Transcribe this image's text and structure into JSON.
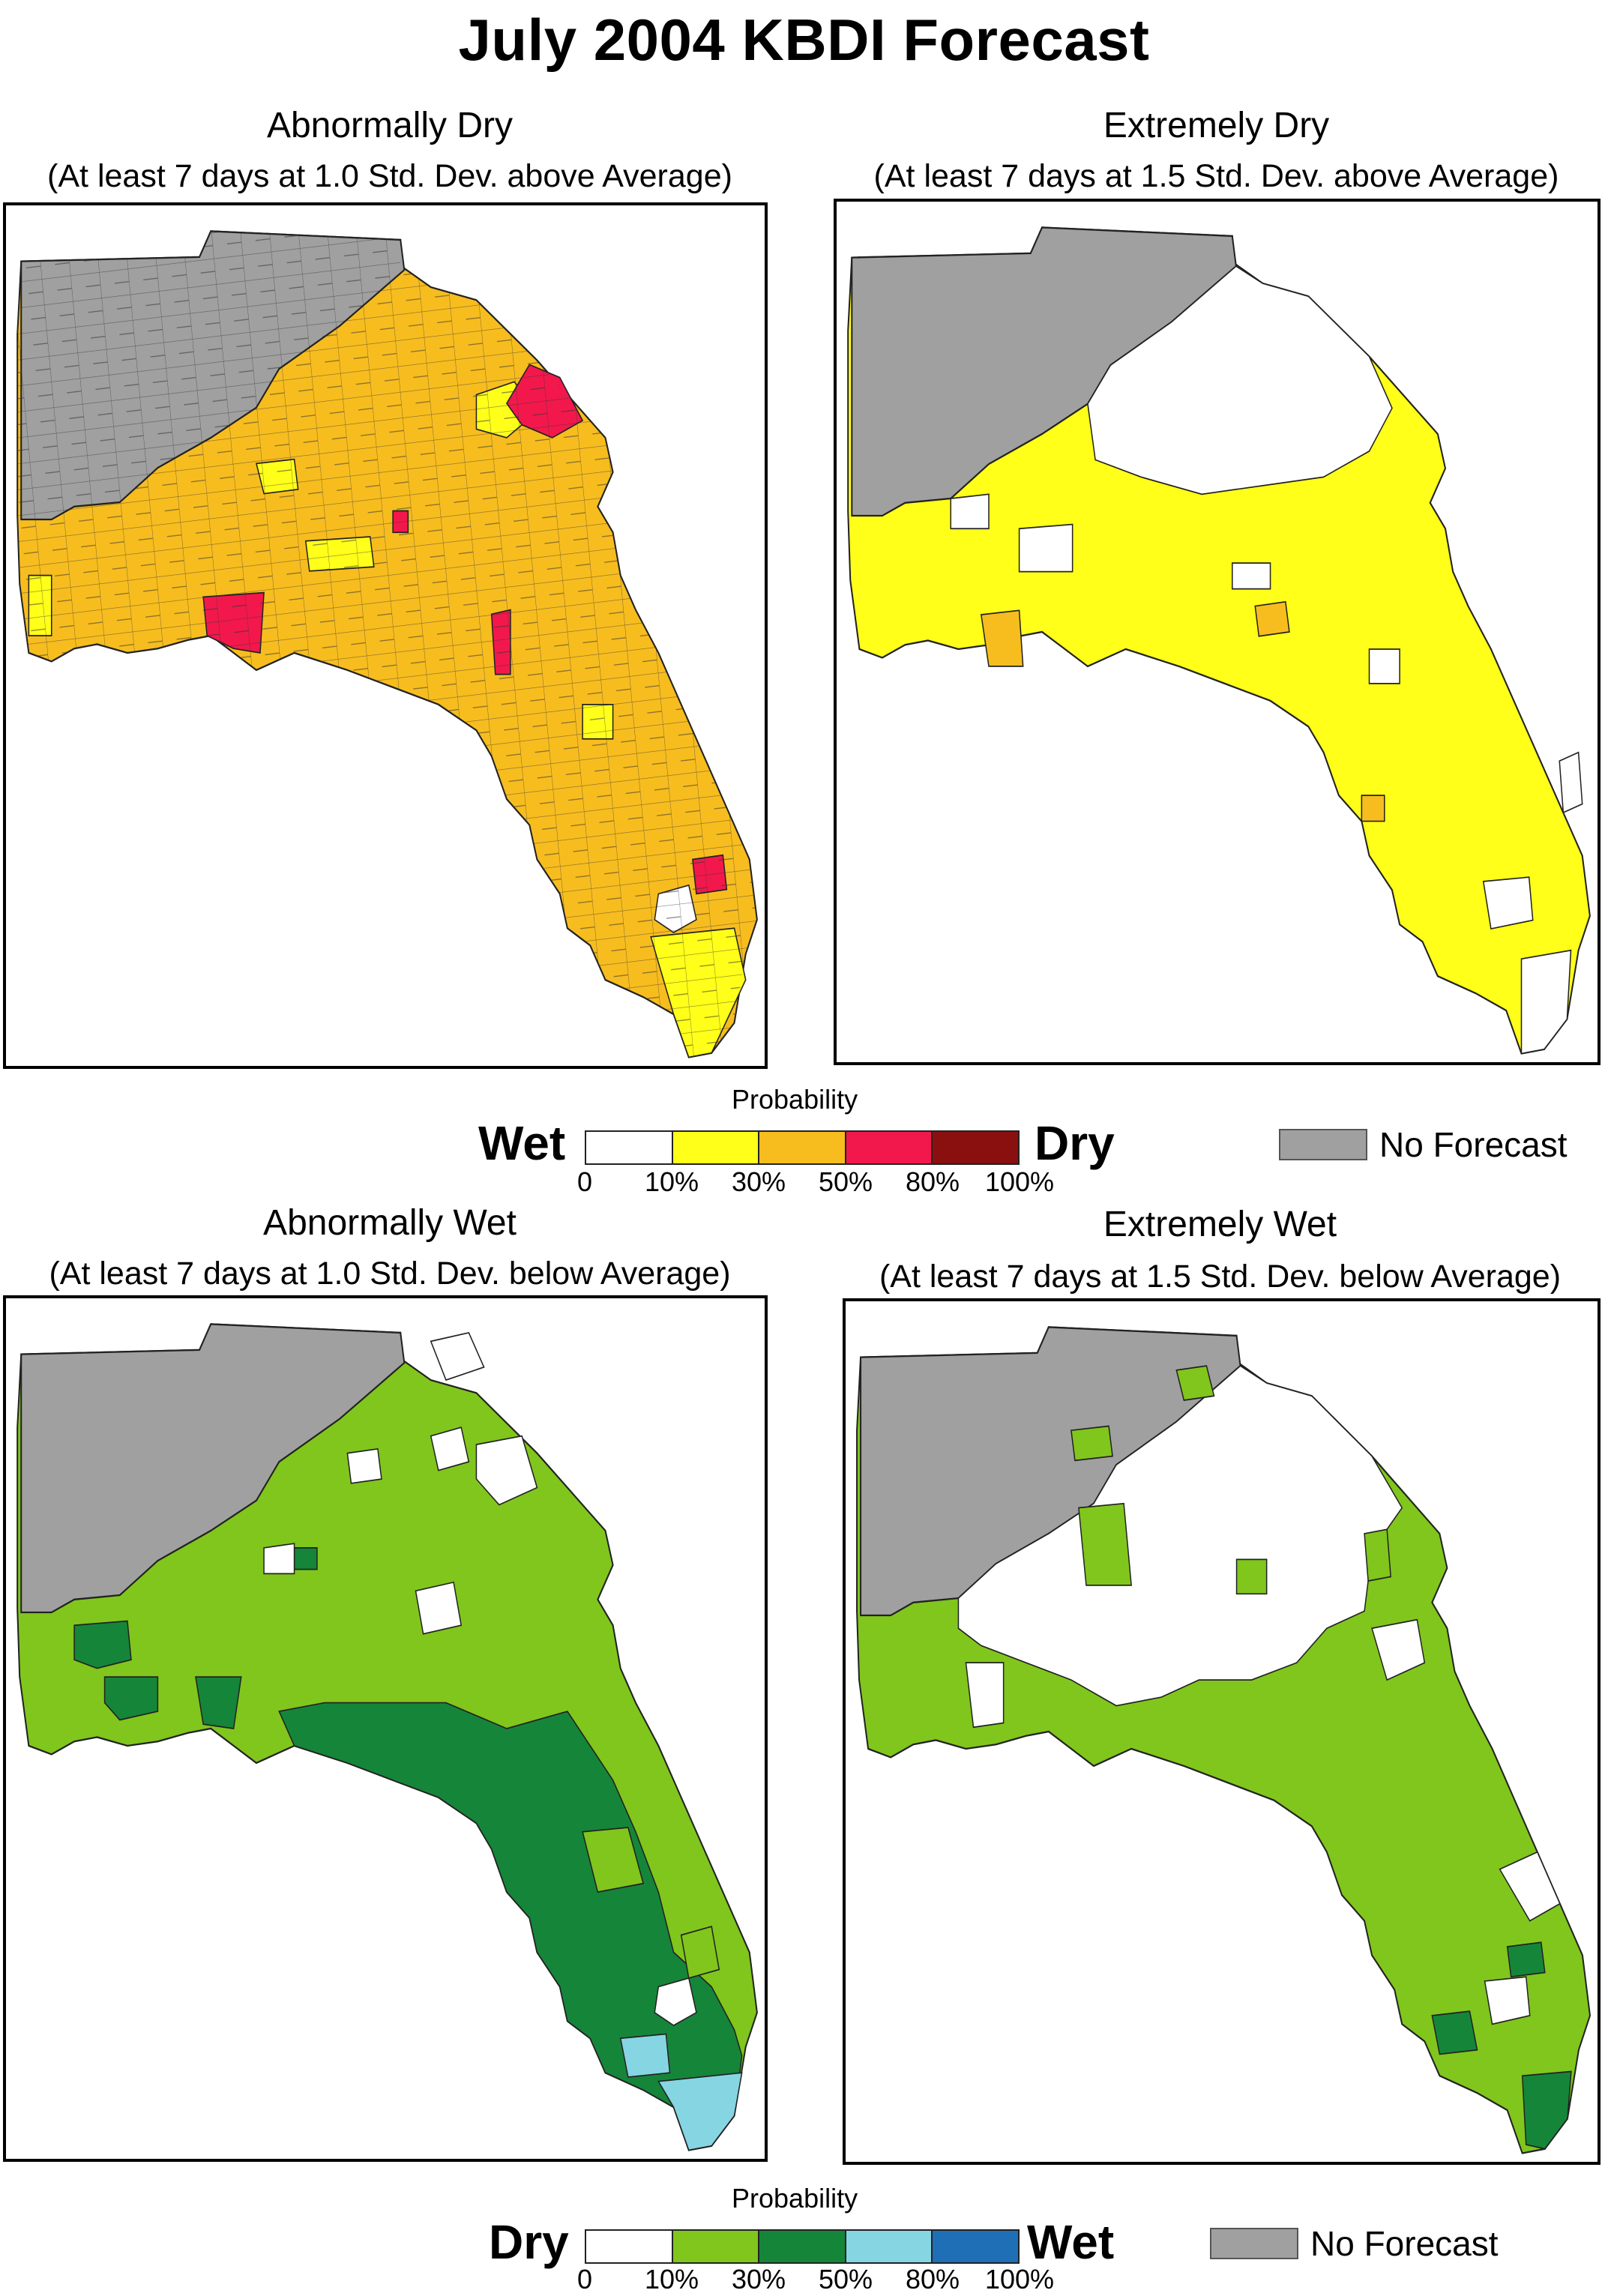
{
  "title": "July 2004 KBDI Forecast",
  "panels": [
    {
      "title": "Abnormally Dry",
      "subtitle": "(At least 7 days at 1.0 Std. Dev. above Average)"
    },
    {
      "title": "Extremely Dry",
      "subtitle": "(At least 7 days at 1.5 Std. Dev. above Average)"
    },
    {
      "title": "Abnormally Wet",
      "subtitle": "(At least 7 days at 1.0 Std. Dev. below Average)"
    },
    {
      "title": "Extremely Wet",
      "subtitle": "(At least 7 days at 1.5 Std. Dev. below Average)"
    }
  ],
  "legend_dry": {
    "probability_label": "Probability",
    "left_label": "Wet",
    "right_label": "Dry",
    "ticks": [
      "0",
      "10%",
      "30%",
      "50%",
      "80%",
      "100%"
    ],
    "colors": [
      "#ffffff",
      "#ffff1a",
      "#f7bd1f",
      "#f2184c",
      "#8a1010"
    ]
  },
  "legend_wet": {
    "probability_label": "Probability",
    "left_label": "Dry",
    "right_label": "Wet",
    "ticks": [
      "0",
      "10%",
      "30%",
      "50%",
      "80%",
      "100%"
    ],
    "colors": [
      "#ffffff",
      "#80c61c",
      "#15853a",
      "#86d5e3",
      "#1f6fb6"
    ]
  },
  "no_forecast": {
    "label": "No Forecast",
    "color": "#a0a0a0"
  }
}
